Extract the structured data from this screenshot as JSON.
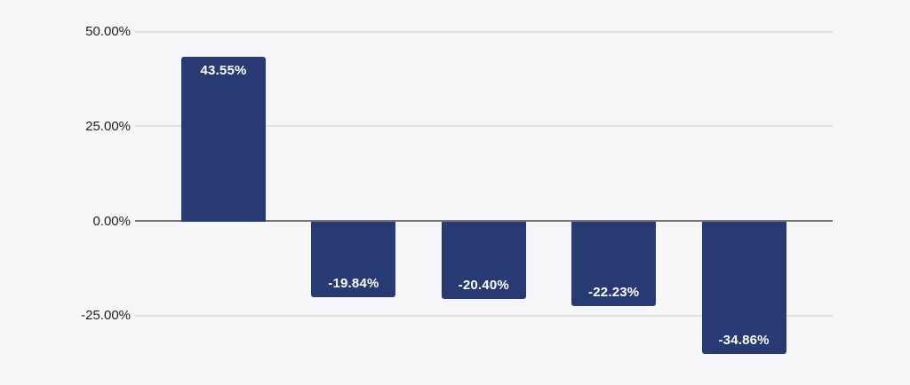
{
  "chart_data": {
    "type": "bar",
    "title": "",
    "xlabel": "",
    "ylabel": "",
    "values": [
      43.55,
      -19.84,
      -20.4,
      -22.23,
      -34.86
    ],
    "bar_labels": [
      "43.55%",
      "-19.84%",
      "-20.40%",
      "-22.23%",
      "-34.86%"
    ],
    "y_ticks": [
      {
        "value": 50,
        "label": "50.00%"
      },
      {
        "value": 25,
        "label": "25.00%"
      },
      {
        "value": 0,
        "label": "0.00%"
      },
      {
        "value": -25,
        "label": "-25.00%"
      }
    ],
    "ylim": [
      -37.5,
      50
    ],
    "grid": true,
    "legend": false,
    "colors": {
      "background": "#f6f6f8",
      "bar": "#283a73",
      "bar_label_text": "#ffffff",
      "axis_tick_text": "#202124",
      "gridline": "#e1e1e4",
      "zero_line": "#757575"
    }
  }
}
